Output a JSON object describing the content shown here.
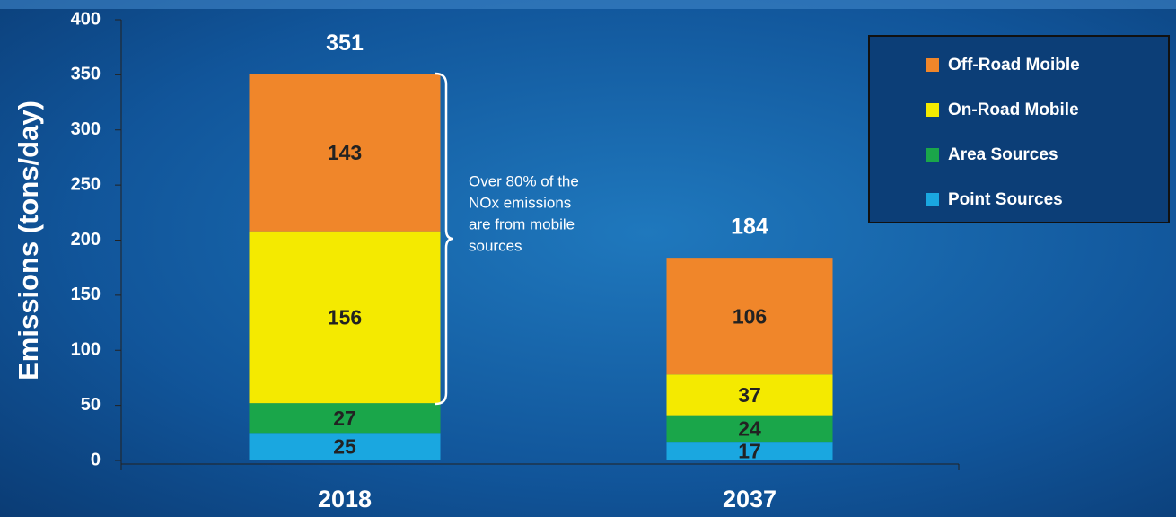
{
  "chart_data": {
    "type": "stacked_bar",
    "ylabel": "Emissions (tons/day)",
    "categories": [
      "2018",
      "2037"
    ],
    "series": [
      {
        "name": "Point Sources",
        "color": "#1aa7e0",
        "values": [
          25,
          17
        ]
      },
      {
        "name": "Area Sources",
        "color": "#1aa64a",
        "values": [
          27,
          24
        ]
      },
      {
        "name": "On-Road Mobile",
        "color": "#f4ea00",
        "values": [
          156,
          37
        ]
      },
      {
        "name": "Off-Road Moible",
        "color": "#f0862a",
        "values": [
          143,
          106
        ]
      }
    ],
    "totals": [
      351,
      184
    ],
    "ylim": [
      0,
      400
    ],
    "yticks": [
      0,
      50,
      100,
      150,
      200,
      250,
      300,
      350,
      400
    ],
    "annotation": [
      "Over 80% of the",
      "NOx emissions",
      "are from mobile",
      "sources"
    ],
    "legend": "upper right"
  }
}
